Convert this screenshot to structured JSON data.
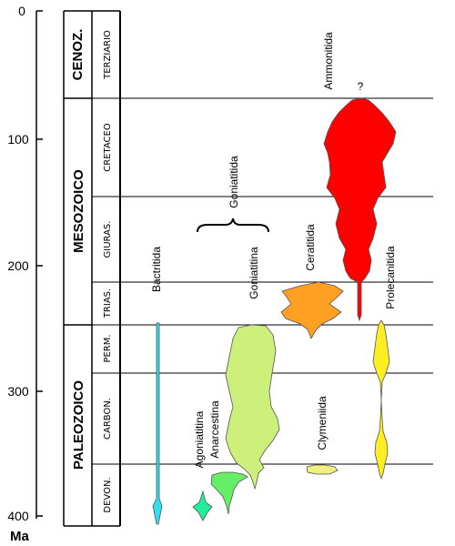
{
  "figure": {
    "axis_unit": "Ma",
    "ticks": [
      "0",
      "100",
      "200",
      "300",
      "400"
    ],
    "eras": [
      {
        "id": "cenozoic",
        "label": "CENOZ."
      },
      {
        "id": "mesozoic",
        "label": "MESOZOICO"
      },
      {
        "id": "paleozoic",
        "label": "PALEOZOICO"
      }
    ],
    "periods": [
      {
        "id": "terziario",
        "label": "TERZIARIO"
      },
      {
        "id": "cretaceo",
        "label": "CRETACEO"
      },
      {
        "id": "giuras",
        "label": "GIURAS."
      },
      {
        "id": "trias",
        "label": "TRIAS."
      },
      {
        "id": "perm",
        "label": "PERM."
      },
      {
        "id": "carbon",
        "label": "CARBON."
      },
      {
        "id": "devon",
        "label": "DEVON."
      }
    ],
    "taxa": [
      {
        "id": "bactritida",
        "label": "Bactritida",
        "color": "#33ddee"
      },
      {
        "id": "agoniatitina",
        "label": "Agoniatitina",
        "color": "#22ee99"
      },
      {
        "id": "anarcestina",
        "label": "Anarcestina",
        "color": "#66ee66"
      },
      {
        "id": "goniatitina",
        "label": "Goniatitina",
        "color": "#ccf07a"
      },
      {
        "id": "goniatitida",
        "label": "Goniatitida"
      },
      {
        "id": "clymeniida",
        "label": "Clymeniida",
        "color": "#f0f080"
      },
      {
        "id": "ceratitida",
        "label": "Ceratitida",
        "color": "#ffa022"
      },
      {
        "id": "ammonitida",
        "label": "Ammonitida",
        "color": "#ff0000"
      },
      {
        "id": "prolecanitida",
        "label": "Prolecanitida",
        "color": "#ffee22"
      }
    ],
    "uncertain_mark": "?"
  }
}
